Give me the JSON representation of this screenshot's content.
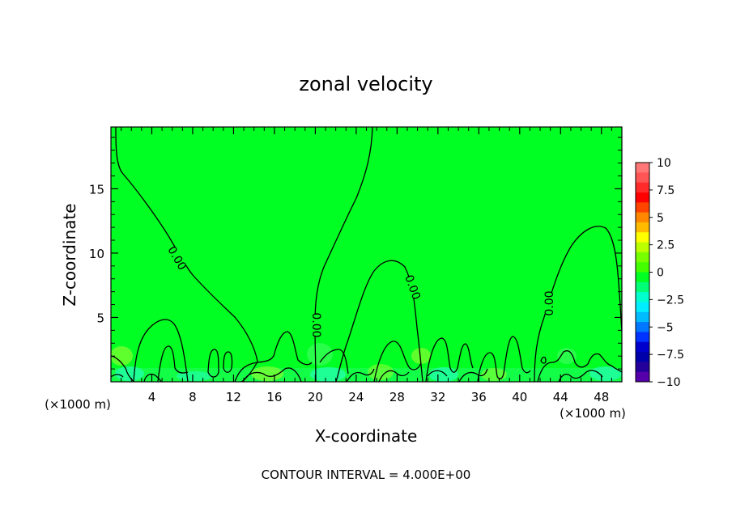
{
  "chart_data": {
    "type": "heatmap",
    "title": "zonal velocity",
    "xlabel": "X-coordinate",
    "ylabel": "Z-coordinate",
    "x_unit_label": "(×1000 m)",
    "x_ticks": [
      4,
      8,
      12,
      16,
      20,
      24,
      28,
      32,
      36,
      40,
      44,
      48
    ],
    "y_ticks": [
      5,
      10,
      15
    ],
    "xlim": [
      0,
      50
    ],
    "ylim": [
      0,
      19.8
    ],
    "contour_interval_text": "CONTOUR INTERVAL = 4.000E+00",
    "contour_labels": [
      {
        "text": "0.00",
        "x": 6.5,
        "y": 9.6
      },
      {
        "text": "0.00",
        "x": 20.1,
        "y": 4.8
      },
      {
        "text": "0.00",
        "x": 29.7,
        "y": 7.6
      },
      {
        "text": "0.00",
        "x": 42.4,
        "y": 6.3
      }
    ],
    "colorbar": {
      "labels": [
        "10",
        "7.5",
        "5",
        "2.5",
        "0",
        "-2.5",
        "-5",
        "-7.5",
        "-10"
      ],
      "colors": [
        "#ff7777",
        "#ff5555",
        "#ff2a2a",
        "#ff0000",
        "#ff4400",
        "#ff8800",
        "#ffbb00",
        "#ffff00",
        "#bbff00",
        "#77ff00",
        "#44ff00",
        "#00ff22",
        "#00ff77",
        "#00ffcc",
        "#00eeff",
        "#00bbff",
        "#0077ff",
        "#0033ff",
        "#0000cc",
        "#0000aa",
        "#220099",
        "#5500aa"
      ]
    },
    "field_background": "#00ff22"
  }
}
